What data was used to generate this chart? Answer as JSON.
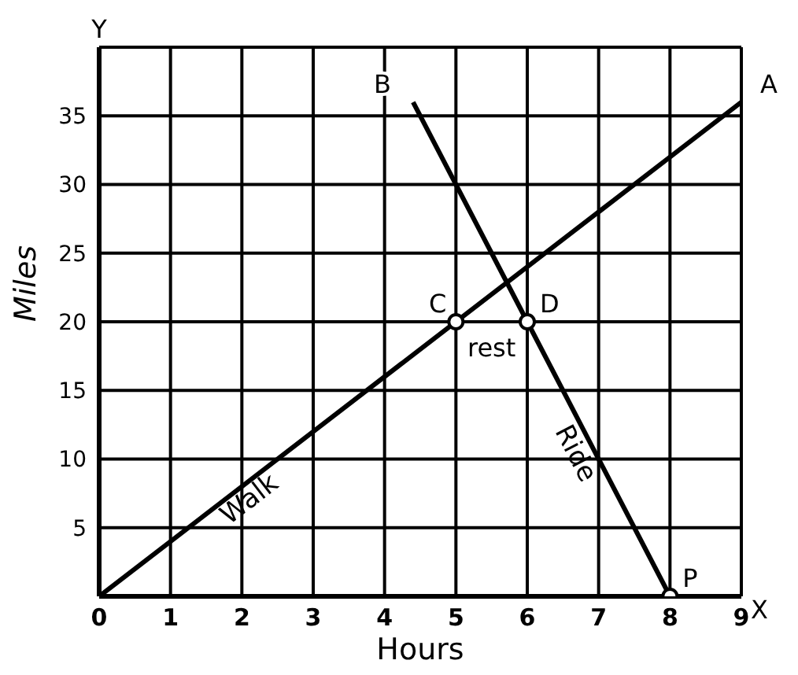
{
  "chart_data": {
    "type": "line",
    "xlabel": "Hours",
    "ylabel": "Miles",
    "xlim": [
      0,
      9
    ],
    "xticks": [
      0,
      1,
      2,
      3,
      4,
      5,
      6,
      7,
      8,
      9
    ],
    "ylim": [
      0,
      40
    ],
    "yticks": [
      {
        "value": 0,
        "label": null
      },
      5,
      10,
      15,
      20,
      25,
      30,
      35,
      {
        "value": 40,
        "label": null
      }
    ],
    "grid": true,
    "marker": "none",
    "line_style": "solid",
    "series": [
      {
        "name": "Walk",
        "color": "#000000",
        "x": [
          0,
          9
        ],
        "values": [
          0,
          36
        ]
      },
      {
        "name": "Ride",
        "color": "#000000",
        "x": [
          4.4,
          6,
          8
        ],
        "values": [
          36,
          20,
          0
        ]
      },
      {
        "type": "scatter",
        "color": "#000000",
        "marker": "circle",
        "x": [
          5,
          6,
          8
        ],
        "values": [
          20,
          20,
          0
        ]
      }
    ],
    "annotations": [
      {
        "text": "A",
        "x": 9,
        "y": 36
      },
      {
        "text": "B",
        "x": 4.4,
        "y": 36
      },
      {
        "text": "C",
        "x": 5,
        "y": 20
      },
      {
        "text": "D",
        "x": 6,
        "y": 20
      },
      {
        "text": "P",
        "x": 8,
        "y": 0
      },
      "rest",
      "Y",
      "X"
    ]
  }
}
